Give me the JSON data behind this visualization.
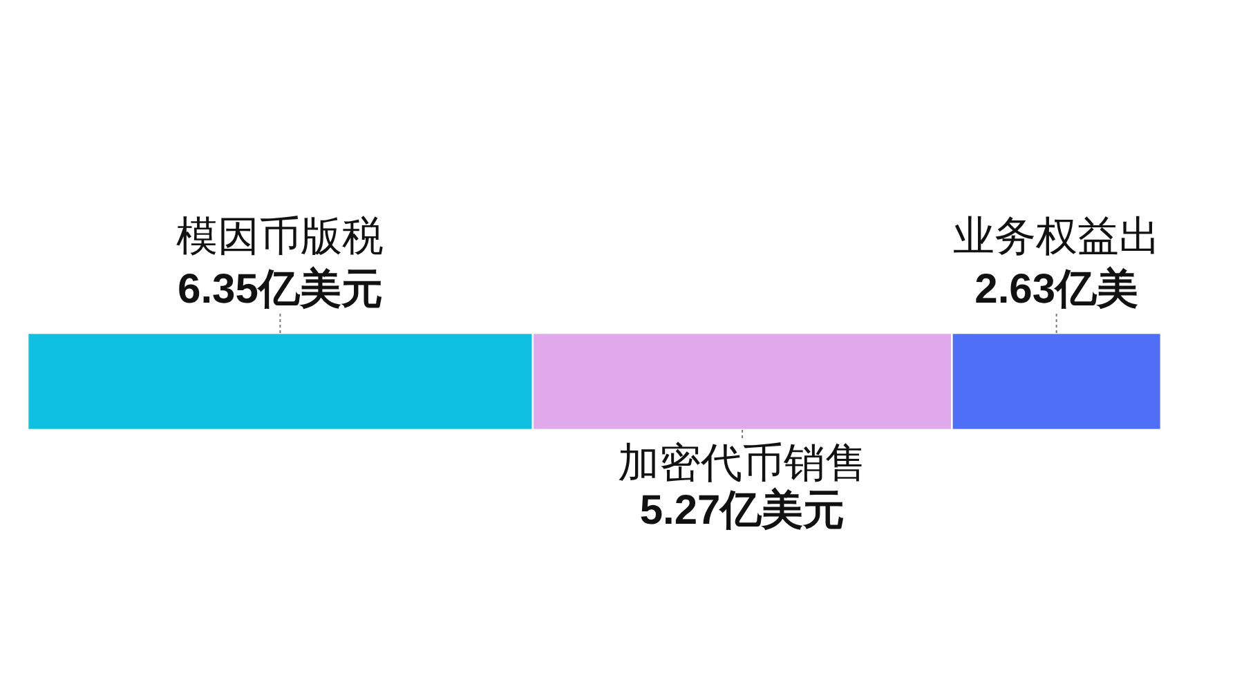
{
  "chart_data": {
    "type": "bar",
    "orientation": "horizontal",
    "stacked": true,
    "categories": [
      null
    ],
    "series": [
      {
        "name": "模因币版税",
        "color": "#10c0e0",
        "values": [
          6.35
        ],
        "value_labels": [
          "6.35亿美元"
        ]
      },
      {
        "name": "加密代币销售",
        "color": "#e0a9ec",
        "values": [
          5.27
        ],
        "value_labels": [
          "5.27亿美元"
        ]
      },
      {
        "name": "业务权益出",
        "color": "#4f6ff6",
        "values": [
          2.63
        ],
        "value_labels": [
          "2.63亿美"
        ]
      }
    ],
    "legend": false,
    "tick_labels": false
  }
}
